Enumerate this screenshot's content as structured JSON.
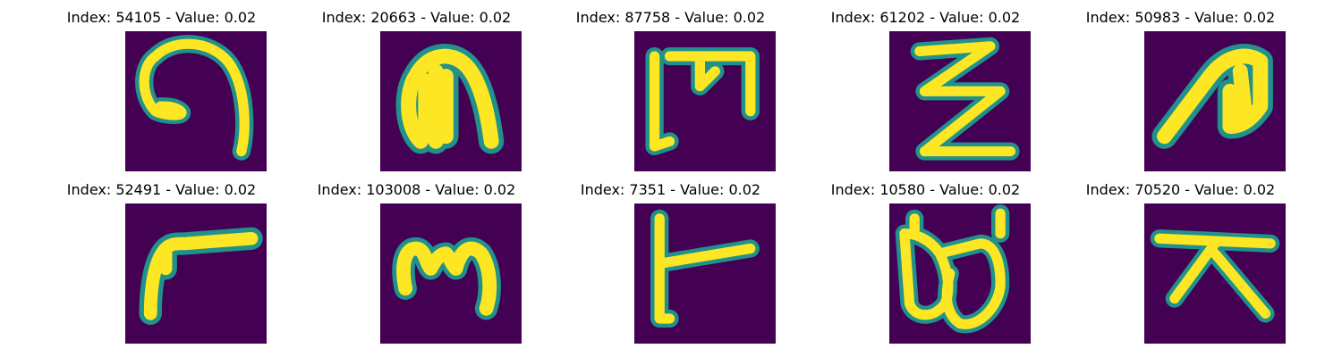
{
  "panels": [
    {
      "title": "Index: 54105 - Value: 0.02",
      "glyph": "hook-spiral-glyph"
    },
    {
      "title": "Index: 20663 - Value: 0.02",
      "glyph": "arch-glyph"
    },
    {
      "title": "Index: 87758 - Value: 0.02",
      "glyph": "bracket-m-glyph"
    },
    {
      "title": "Index: 61202 - Value: 0.02",
      "glyph": "zigzag-glyph"
    },
    {
      "title": "Index: 50983 - Value: 0.02",
      "glyph": "slanted-hook-glyph"
    },
    {
      "title": "Index: 52491 - Value: 0.02",
      "glyph": "curved-seven-glyph"
    },
    {
      "title": "Index: 103008 - Value: 0.02",
      "glyph": "m-curve-glyph"
    },
    {
      "title": "Index: 7351 - Value: 0.02",
      "glyph": "t-shape-glyph"
    },
    {
      "title": "Index: 10580 - Value: 0.02",
      "glyph": "double-loop-glyph"
    },
    {
      "title": "Index: 70520 - Value: 0.02",
      "glyph": "a-frame-glyph"
    }
  ],
  "colors": {
    "background": "#440154",
    "stroke_core": "#fde725",
    "stroke_edge": "#21918c"
  }
}
